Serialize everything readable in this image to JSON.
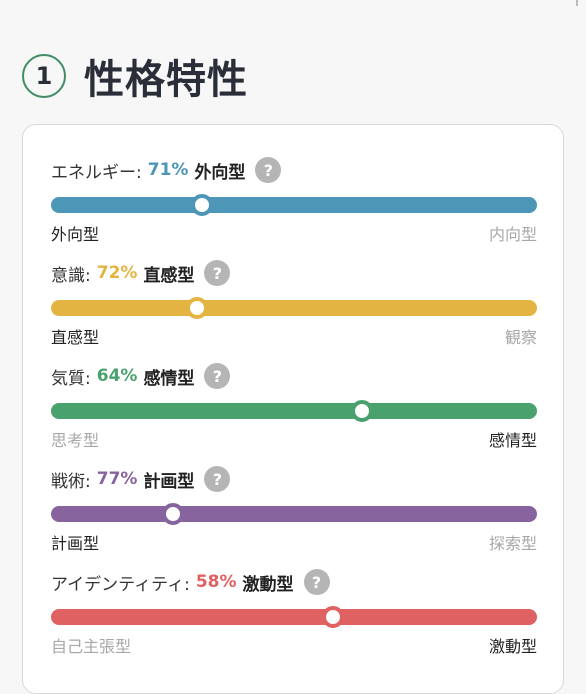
{
  "section": {
    "number": "1",
    "title": "性格特性"
  },
  "traits": [
    {
      "label": "エネルギー:",
      "percent": "71%",
      "type": "外向型",
      "left": "外向型",
      "right": "内向型",
      "active_side": "left",
      "position": 0.31,
      "color": "#4e96b7"
    },
    {
      "label": "意識:",
      "percent": "72%",
      "type": "直感型",
      "left": "直感型",
      "right": "観察",
      "active_side": "left",
      "position": 0.3,
      "color": "#e3b441"
    },
    {
      "label": "気質:",
      "percent": "64%",
      "type": "感情型",
      "left": "思考型",
      "right": "感情型",
      "active_side": "right",
      "position": 0.64,
      "color": "#49a26d"
    },
    {
      "label": "戦術:",
      "percent": "77%",
      "type": "計画型",
      "left": "計画型",
      "right": "探索型",
      "active_side": "left",
      "position": 0.25,
      "color": "#87649d"
    },
    {
      "label": "アイデンティティ:",
      "percent": "58%",
      "type": "激動型",
      "left": "自己主張型",
      "right": "激動型",
      "active_side": "right",
      "position": 0.58,
      "color": "#e06161"
    }
  ],
  "help_symbol": "?"
}
